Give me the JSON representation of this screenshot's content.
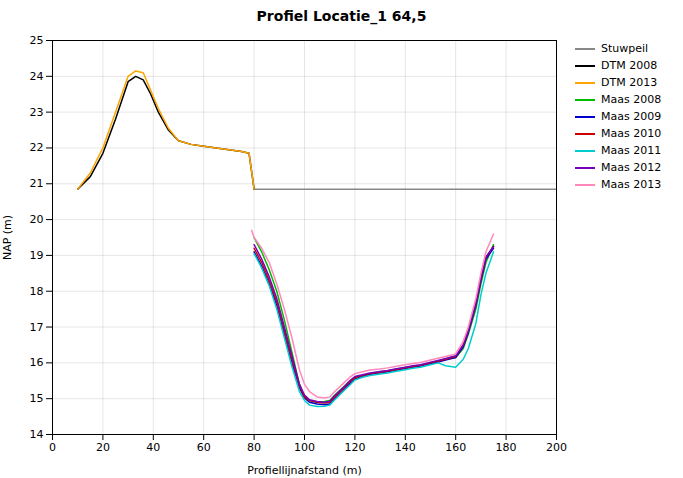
{
  "chart_data": {
    "type": "line",
    "title": "Profiel Locatie_1 64,5",
    "xlabel": "Profiellijnafstand (m)",
    "ylabel": "NAP (m)",
    "xlim": [
      0,
      200
    ],
    "ylim": [
      14,
      25
    ],
    "xticks": [
      0,
      20,
      40,
      60,
      80,
      100,
      120,
      140,
      160,
      180,
      200
    ],
    "yticks": [
      14,
      15,
      16,
      17,
      18,
      19,
      20,
      21,
      22,
      23,
      24,
      25
    ],
    "grid": true,
    "legend": "right",
    "series": [
      {
        "name": "Stuwpeil",
        "color": "#888888",
        "x": [
          80,
          200
        ],
        "values": [
          20.85,
          20.85
        ]
      },
      {
        "name": "DTM 2008",
        "color": "#000000",
        "x": [
          10,
          15,
          20,
          25,
          30,
          33,
          36,
          39,
          42,
          46,
          50,
          55,
          60,
          65,
          70,
          75,
          78,
          80
        ],
        "values": [
          20.85,
          21.2,
          21.85,
          22.8,
          23.85,
          24.0,
          23.9,
          23.5,
          23.0,
          22.5,
          22.2,
          22.1,
          22.05,
          22.0,
          21.95,
          21.9,
          21.85,
          20.85
        ]
      },
      {
        "name": "DTM 2013",
        "color": "#FFA500",
        "x": [
          10,
          15,
          20,
          25,
          30,
          33,
          36,
          39,
          42,
          46,
          50,
          55,
          60,
          65,
          70,
          75,
          78,
          80
        ],
        "values": [
          20.85,
          21.3,
          22.0,
          23.0,
          24.0,
          24.15,
          24.1,
          23.6,
          23.1,
          22.55,
          22.2,
          22.1,
          22.05,
          22.0,
          21.95,
          21.9,
          21.85,
          20.85
        ]
      },
      {
        "name": "Maas 2008",
        "color": "#00BB00",
        "x": [
          80,
          83,
          86,
          89,
          92,
          95,
          98,
          100,
          102,
          105,
          108,
          110,
          112,
          115,
          118,
          120,
          123,
          126,
          130,
          133,
          136,
          140,
          143,
          146,
          150,
          153,
          156,
          160,
          163,
          165,
          168,
          170,
          172,
          175
        ],
        "values": [
          19.5,
          19.1,
          18.6,
          18.0,
          17.2,
          16.3,
          15.4,
          15.05,
          14.95,
          14.9,
          14.92,
          14.95,
          15.1,
          15.3,
          15.5,
          15.6,
          15.65,
          15.7,
          15.75,
          15.78,
          15.82,
          15.87,
          15.9,
          15.93,
          16.0,
          16.05,
          16.1,
          16.15,
          16.4,
          16.8,
          17.5,
          18.2,
          18.8,
          19.3
        ]
      },
      {
        "name": "Maas 2009",
        "color": "#0000CC",
        "x": [
          80,
          83,
          86,
          89,
          92,
          95,
          98,
          100,
          102,
          105,
          108,
          110,
          112,
          115,
          118,
          120,
          123,
          126,
          130,
          133,
          136,
          140,
          143,
          146,
          150,
          153,
          156,
          160,
          163,
          165,
          168,
          170,
          172,
          175
        ],
        "values": [
          19.1,
          18.7,
          18.2,
          17.6,
          16.8,
          16.0,
          15.3,
          15.02,
          14.9,
          14.85,
          14.83,
          14.85,
          15.0,
          15.2,
          15.42,
          15.55,
          15.62,
          15.68,
          15.72,
          15.75,
          15.79,
          15.84,
          15.88,
          15.91,
          15.98,
          16.02,
          16.08,
          16.15,
          16.45,
          16.85,
          17.6,
          18.3,
          18.9,
          19.2
        ]
      },
      {
        "name": "Maas 2010",
        "color": "#CC0000",
        "x": [
          80,
          83,
          86,
          89,
          92,
          95,
          98,
          100,
          102,
          105,
          108,
          110,
          112,
          115,
          118,
          120,
          123,
          126,
          130,
          133,
          136,
          140,
          143,
          146,
          150,
          153,
          156,
          160,
          163,
          165,
          168,
          170,
          172,
          175
        ],
        "values": [
          19.2,
          18.8,
          18.3,
          17.7,
          16.9,
          16.1,
          15.35,
          15.05,
          14.95,
          14.9,
          14.88,
          14.9,
          15.05,
          15.25,
          15.47,
          15.58,
          15.65,
          15.7,
          15.74,
          15.77,
          15.81,
          15.86,
          15.9,
          15.93,
          16.0,
          16.05,
          16.1,
          16.18,
          16.5,
          16.9,
          17.65,
          18.35,
          18.95,
          19.25
        ]
      },
      {
        "name": "Maas 2011",
        "color": "#00CCCC",
        "x": [
          80,
          83,
          86,
          89,
          92,
          95,
          98,
          100,
          102,
          105,
          108,
          110,
          112,
          115,
          118,
          120,
          123,
          126,
          130,
          133,
          136,
          140,
          143,
          146,
          150,
          153,
          156,
          160,
          163,
          165,
          168,
          170,
          172,
          175
        ],
        "values": [
          19.05,
          18.65,
          18.15,
          17.5,
          16.7,
          15.9,
          15.2,
          14.95,
          14.82,
          14.78,
          14.79,
          14.82,
          14.97,
          15.18,
          15.38,
          15.52,
          15.6,
          15.65,
          15.69,
          15.72,
          15.76,
          15.81,
          15.85,
          15.88,
          15.95,
          16.0,
          15.92,
          15.88,
          16.1,
          16.4,
          17.1,
          17.9,
          18.5,
          19.1
        ]
      },
      {
        "name": "Maas 2012",
        "color": "#7700BB",
        "x": [
          80,
          83,
          86,
          89,
          92,
          95,
          98,
          100,
          102,
          105,
          108,
          110,
          112,
          115,
          118,
          120,
          123,
          126,
          130,
          133,
          136,
          140,
          143,
          146,
          150,
          153,
          156,
          160,
          163,
          165,
          168,
          170,
          172,
          175
        ],
        "values": [
          19.3,
          18.9,
          18.4,
          17.8,
          17.0,
          16.2,
          15.4,
          15.1,
          14.97,
          14.92,
          14.9,
          14.93,
          15.08,
          15.28,
          15.5,
          15.62,
          15.67,
          15.72,
          15.76,
          15.79,
          15.83,
          15.88,
          15.92,
          15.95,
          16.02,
          16.07,
          16.12,
          16.2,
          16.5,
          16.9,
          17.65,
          18.35,
          18.95,
          19.25
        ]
      },
      {
        "name": "Maas 2013",
        "color": "#FF88BB",
        "x": [
          79,
          80,
          83,
          86,
          89,
          92,
          95,
          98,
          100,
          102,
          105,
          108,
          110,
          112,
          115,
          118,
          120,
          123,
          126,
          130,
          133,
          136,
          140,
          143,
          146,
          150,
          153,
          156,
          160,
          163,
          165,
          168,
          170,
          172,
          175
        ],
        "values": [
          19.7,
          19.5,
          19.2,
          18.8,
          18.2,
          17.5,
          16.7,
          15.8,
          15.4,
          15.2,
          15.05,
          15.02,
          15.05,
          15.2,
          15.4,
          15.6,
          15.7,
          15.75,
          15.8,
          15.83,
          15.86,
          15.9,
          15.95,
          15.98,
          16.01,
          16.08,
          16.13,
          16.18,
          16.25,
          16.6,
          17.0,
          17.8,
          18.5,
          19.1,
          19.6
        ]
      }
    ]
  }
}
